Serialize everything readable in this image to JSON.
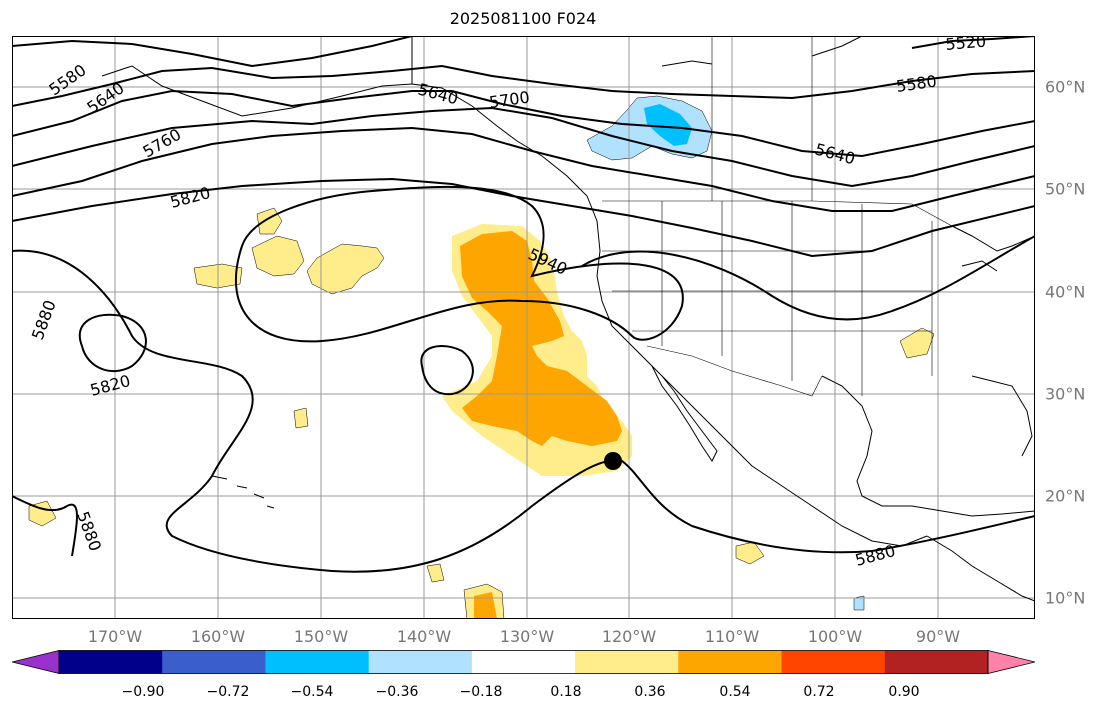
{
  "title": "2025081100 F024",
  "lat_labels": [
    "60°N",
    "50°N",
    "40°N",
    "30°N",
    "20°N",
    "10°N"
  ],
  "lon_labels": [
    "170°W",
    "160°W",
    "150°W",
    "140°W",
    "130°W",
    "120°W",
    "110°W",
    "100°W",
    "90°W"
  ],
  "contour_labels": [
    "5580",
    "5640",
    "5760",
    "5820",
    "5880",
    "5820",
    "5880",
    "5640",
    "5700",
    "5940",
    "5640",
    "5580",
    "5520",
    "5880"
  ],
  "colorbar": {
    "ticks": [
      "−0.90",
      "−0.72",
      "−0.54",
      "−0.36",
      "−0.18",
      "0.18",
      "0.36",
      "0.54",
      "0.72",
      "0.90"
    ],
    "colors": [
      "#9932cc",
      "#00008b",
      "#3a5fcd",
      "#00bfff",
      "#b0e2ff",
      "#ffffff",
      "#ffec8b",
      "#ffa500",
      "#ff4500",
      "#b22222",
      "#ff82ab"
    ]
  },
  "colors": {
    "light_yellow": "#ffec8b",
    "orange": "#ffa500",
    "light_blue": "#b0e2ff",
    "deep_sky_blue": "#00bfff"
  },
  "marker": "black-dot"
}
